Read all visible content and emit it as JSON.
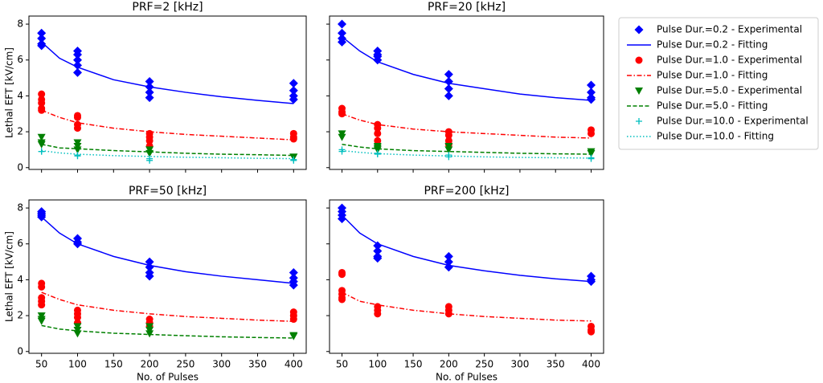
{
  "legend": {
    "entries": [
      {
        "name": "Pulse Dur.=0.2 - Experimental",
        "color": "#0000ff",
        "marker": "diamond"
      },
      {
        "name": "Pulse Dur.=0.2 - Fitting",
        "color": "#0000ff",
        "dash": "solid"
      },
      {
        "name": "Pulse Dur.=1.0 - Experimental",
        "color": "#ff0000",
        "marker": "circle"
      },
      {
        "name": "Pulse Dur.=1.0 - Fitting",
        "color": "#ff0000",
        "dash": "dashdot"
      },
      {
        "name": "Pulse Dur.=5.0 - Experimental",
        "color": "#008000",
        "marker": "triangle-down"
      },
      {
        "name": "Pulse Dur.=5.0 - Fitting",
        "color": "#008000",
        "dash": "dashed"
      },
      {
        "name": "Pulse Dur.=10.0 - Experimental",
        "color": "#00bfbf",
        "marker": "plus"
      },
      {
        "name": "Pulse Dur.=10.0 - Fitting",
        "color": "#00bfbf",
        "dash": "dotted"
      }
    ],
    "position": "outside upper right"
  },
  "chart_data": [
    {
      "type": "scatter",
      "title": "PRF=2 [kHz]",
      "ylabel": "Lethal EFT [kV/cm]",
      "xlim": [
        32.5,
        417.5
      ],
      "ylim": [
        -0.1,
        8.45
      ],
      "yticks": [
        0,
        2,
        4,
        6,
        8
      ],
      "series": [
        {
          "kind": "scatter",
          "marker": "diamond",
          "color": "#0000ff",
          "x": [
            50,
            50,
            50,
            50,
            100,
            100,
            100,
            100,
            100,
            200,
            200,
            200,
            200,
            400,
            400,
            400,
            400
          ],
          "values": [
            7.5,
            7.2,
            6.9,
            6.8,
            6.5,
            6.3,
            6.0,
            5.7,
            5.3,
            4.8,
            4.5,
            4.2,
            3.9,
            4.7,
            4.3,
            4.0,
            3.8
          ]
        },
        {
          "kind": "line",
          "dash": "solid",
          "color": "#0000ff",
          "x": [
            50,
            75,
            100,
            150,
            200,
            250,
            300,
            350,
            400
          ],
          "values": [
            7.0,
            6.1,
            5.6,
            4.9,
            4.5,
            4.2,
            3.95,
            3.75,
            3.57
          ]
        },
        {
          "kind": "scatter",
          "marker": "circle",
          "color": "#ff0000",
          "x": [
            50,
            50,
            50,
            50,
            50,
            100,
            100,
            100,
            100,
            200,
            200,
            200,
            200,
            400,
            400,
            400
          ],
          "values": [
            4.1,
            3.8,
            3.6,
            3.3,
            3.2,
            2.9,
            2.8,
            2.4,
            2.2,
            1.9,
            1.7,
            1.5,
            1.2,
            1.9,
            1.7,
            1.6
          ]
        },
        {
          "kind": "line",
          "dash": "dashdot",
          "color": "#ff0000",
          "x": [
            50,
            75,
            100,
            150,
            200,
            250,
            300,
            350,
            400
          ],
          "values": [
            3.2,
            2.8,
            2.5,
            2.2,
            2.0,
            1.85,
            1.75,
            1.65,
            1.55
          ]
        },
        {
          "kind": "scatter",
          "marker": "triangle-down",
          "color": "#008000",
          "x": [
            50,
            50,
            50,
            100,
            100,
            100,
            200,
            200,
            400,
            400
          ],
          "values": [
            1.7,
            1.4,
            1.3,
            1.4,
            1.2,
            1.0,
            1.0,
            0.8,
            0.6,
            0.6
          ]
        },
        {
          "kind": "line",
          "dash": "dashed",
          "color": "#008000",
          "x": [
            50,
            75,
            100,
            150,
            200,
            250,
            300,
            350,
            400
          ],
          "values": [
            1.3,
            1.1,
            1.05,
            0.95,
            0.88,
            0.8,
            0.75,
            0.72,
            0.68
          ]
        },
        {
          "kind": "scatter",
          "marker": "plus",
          "color": "#00bfbf",
          "x": [
            50,
            50,
            100,
            100,
            200,
            200,
            400,
            400
          ],
          "values": [
            0.9,
            0.9,
            0.7,
            0.65,
            0.5,
            0.4,
            0.4,
            0.45
          ]
        },
        {
          "kind": "line",
          "dash": "dotted",
          "color": "#00bfbf",
          "x": [
            50,
            75,
            100,
            150,
            200,
            250,
            300,
            350,
            400
          ],
          "values": [
            0.95,
            0.82,
            0.75,
            0.67,
            0.62,
            0.58,
            0.55,
            0.52,
            0.5
          ]
        }
      ]
    },
    {
      "type": "scatter",
      "title": "PRF=20 [kHz]",
      "xlim": [
        32.5,
        417.5
      ],
      "ylim": [
        -0.1,
        8.45
      ],
      "series": [
        {
          "kind": "scatter",
          "marker": "diamond",
          "color": "#0000ff",
          "x": [
            50,
            50,
            50,
            50,
            100,
            100,
            100,
            100,
            200,
            200,
            200,
            200,
            400,
            400,
            400,
            400
          ],
          "values": [
            8.0,
            7.5,
            7.2,
            7.0,
            6.5,
            6.3,
            6.2,
            6.0,
            5.2,
            4.8,
            4.4,
            4.0,
            4.6,
            4.2,
            3.9,
            3.8
          ]
        },
        {
          "kind": "line",
          "dash": "solid",
          "color": "#0000ff",
          "x": [
            50,
            75,
            100,
            150,
            200,
            250,
            300,
            350,
            400
          ],
          "values": [
            7.3,
            6.5,
            5.9,
            5.2,
            4.7,
            4.4,
            4.1,
            3.9,
            3.75
          ]
        },
        {
          "kind": "scatter",
          "marker": "circle",
          "color": "#ff0000",
          "x": [
            50,
            50,
            50,
            100,
            100,
            100,
            100,
            200,
            200,
            200,
            200,
            400,
            400
          ],
          "values": [
            3.3,
            3.1,
            3.0,
            2.4,
            2.2,
            1.9,
            1.5,
            2.0,
            1.8,
            1.5,
            1.3,
            2.1,
            1.9
          ]
        },
        {
          "kind": "line",
          "dash": "dashdot",
          "color": "#ff0000",
          "x": [
            50,
            75,
            100,
            150,
            200,
            250,
            300,
            350,
            400
          ],
          "values": [
            3.0,
            2.65,
            2.4,
            2.15,
            2.0,
            1.9,
            1.8,
            1.7,
            1.65
          ]
        },
        {
          "kind": "scatter",
          "marker": "triangle-down",
          "color": "#008000",
          "x": [
            50,
            50,
            100,
            100,
            100,
            200,
            200,
            400,
            400
          ],
          "values": [
            1.9,
            1.7,
            1.2,
            1.1,
            1.0,
            1.2,
            1.0,
            0.9,
            0.8
          ]
        },
        {
          "kind": "line",
          "dash": "dashed",
          "color": "#008000",
          "x": [
            50,
            75,
            100,
            150,
            200,
            250,
            300,
            350,
            400
          ],
          "values": [
            1.3,
            1.15,
            1.05,
            0.95,
            0.9,
            0.85,
            0.8,
            0.77,
            0.75
          ]
        },
        {
          "kind": "scatter",
          "marker": "plus",
          "color": "#00bfbf",
          "x": [
            50,
            50,
            100,
            100,
            200,
            200,
            400,
            400
          ],
          "values": [
            1.0,
            0.9,
            0.8,
            0.75,
            0.6,
            0.7,
            0.55,
            0.5
          ]
        },
        {
          "kind": "line",
          "dash": "dotted",
          "color": "#00bfbf",
          "x": [
            50,
            75,
            100,
            150,
            200,
            250,
            300,
            350,
            400
          ],
          "values": [
            0.95,
            0.85,
            0.78,
            0.7,
            0.65,
            0.6,
            0.57,
            0.55,
            0.53
          ]
        }
      ]
    },
    {
      "type": "scatter",
      "title": "PRF=50 [kHz]",
      "xlabel": "No. of Pulses",
      "ylabel": "Lethal EFT [kV/cm]",
      "xlim": [
        32.5,
        417.5
      ],
      "ylim": [
        -0.1,
        8.45
      ],
      "xticks": [
        50,
        100,
        150,
        200,
        250,
        300,
        350,
        400
      ],
      "yticks": [
        0,
        2,
        4,
        6,
        8
      ],
      "series": [
        {
          "kind": "scatter",
          "marker": "diamond",
          "color": "#0000ff",
          "x": [
            50,
            50,
            50,
            50,
            100,
            100,
            100,
            200,
            200,
            200,
            200,
            400,
            400,
            400,
            400
          ],
          "values": [
            7.8,
            7.7,
            7.6,
            7.5,
            6.3,
            6.1,
            6.0,
            5.0,
            4.7,
            4.4,
            4.2,
            4.4,
            4.1,
            3.9,
            3.7
          ]
        },
        {
          "kind": "line",
          "dash": "solid",
          "color": "#0000ff",
          "x": [
            50,
            75,
            100,
            150,
            200,
            250,
            300,
            350,
            400
          ],
          "values": [
            7.5,
            6.6,
            6.0,
            5.3,
            4.8,
            4.45,
            4.2,
            4.0,
            3.8
          ]
        },
        {
          "kind": "scatter",
          "marker": "circle",
          "color": "#ff0000",
          "x": [
            50,
            50,
            50,
            50,
            50,
            100,
            100,
            100,
            100,
            200,
            200,
            200,
            400,
            400,
            400
          ],
          "values": [
            3.8,
            3.6,
            3.0,
            2.8,
            2.6,
            2.3,
            2.1,
            1.9,
            1.6,
            1.8,
            1.6,
            1.4,
            2.2,
            2.0,
            1.8
          ]
        },
        {
          "kind": "line",
          "dash": "dashdot",
          "color": "#ff0000",
          "x": [
            50,
            75,
            100,
            150,
            200,
            250,
            300,
            350,
            400
          ],
          "values": [
            3.3,
            2.9,
            2.6,
            2.3,
            2.1,
            1.95,
            1.85,
            1.75,
            1.68
          ]
        },
        {
          "kind": "scatter",
          "marker": "triangle-down",
          "color": "#008000",
          "x": [
            50,
            50,
            50,
            100,
            100,
            100,
            200,
            200,
            200,
            400,
            400
          ],
          "values": [
            2.0,
            1.8,
            1.7,
            1.4,
            1.2,
            1.0,
            1.4,
            1.2,
            1.0,
            0.9,
            0.85
          ]
        },
        {
          "kind": "line",
          "dash": "dashed",
          "color": "#008000",
          "x": [
            50,
            75,
            100,
            150,
            200,
            250,
            300,
            350,
            400
          ],
          "values": [
            1.45,
            1.25,
            1.15,
            1.02,
            0.95,
            0.88,
            0.82,
            0.78,
            0.75
          ]
        }
      ]
    },
    {
      "type": "scatter",
      "title": "PRF=200 [kHz]",
      "xlabel": "No. of Pulses",
      "xlim": [
        32.5,
        417.5
      ],
      "ylim": [
        -0.1,
        8.45
      ],
      "xticks": [
        50,
        100,
        150,
        200,
        250,
        300,
        350,
        400
      ],
      "series": [
        {
          "kind": "scatter",
          "marker": "diamond",
          "color": "#0000ff",
          "x": [
            50,
            50,
            50,
            50,
            100,
            100,
            100,
            100,
            200,
            200,
            200,
            400,
            400,
            400
          ],
          "values": [
            8.0,
            7.8,
            7.6,
            7.4,
            5.9,
            5.6,
            5.3,
            5.2,
            5.3,
            5.0,
            4.7,
            4.2,
            4.0,
            3.9
          ]
        },
        {
          "kind": "line",
          "dash": "solid",
          "color": "#0000ff",
          "x": [
            50,
            75,
            100,
            150,
            200,
            250,
            300,
            350,
            400
          ],
          "values": [
            7.6,
            6.6,
            6.0,
            5.3,
            4.8,
            4.5,
            4.25,
            4.05,
            3.9
          ]
        },
        {
          "kind": "scatter",
          "marker": "circle",
          "color": "#ff0000",
          "x": [
            50,
            50,
            50,
            50,
            50,
            50,
            100,
            100,
            100,
            200,
            200,
            200,
            400,
            400,
            400
          ],
          "values": [
            4.4,
            4.3,
            3.4,
            3.2,
            3.0,
            2.9,
            2.5,
            2.3,
            2.1,
            2.5,
            2.3,
            2.1,
            1.4,
            1.2,
            1.1
          ]
        },
        {
          "kind": "line",
          "dash": "dashdot",
          "color": "#ff0000",
          "x": [
            50,
            75,
            100,
            150,
            200,
            250,
            300,
            350,
            400
          ],
          "values": [
            3.3,
            2.8,
            2.6,
            2.3,
            2.1,
            1.95,
            1.85,
            1.75,
            1.7
          ]
        }
      ]
    }
  ]
}
